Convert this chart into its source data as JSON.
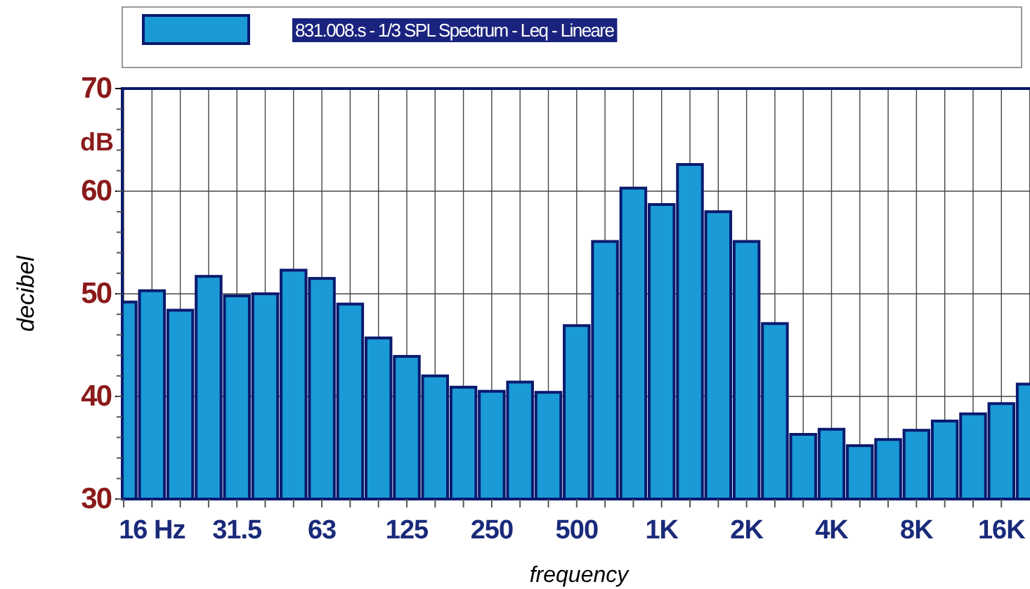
{
  "chart_data": {
    "type": "bar",
    "xlabel": "frequency",
    "ylabel": "decibel",
    "annotations": [
      "dB"
    ],
    "categories": [
      null,
      "16 Hz",
      null,
      null,
      "31.5",
      null,
      null,
      "63",
      null,
      null,
      "125",
      null,
      null,
      "250",
      null,
      null,
      "500",
      null,
      null,
      "1K",
      null,
      null,
      "2K",
      null,
      null,
      "4K",
      null,
      null,
      "8K",
      null,
      null,
      "16K",
      null
    ],
    "series": [
      {
        "name": "831.008.s - 1/3 SPL Spectrum - Leq - Lineare",
        "color": "#1a9ad6",
        "values": [
          49.2,
          50.3,
          48.4,
          51.7,
          49.8,
          50.0,
          52.3,
          51.5,
          49.0,
          45.7,
          43.9,
          42.0,
          40.9,
          40.5,
          41.4,
          40.4,
          46.9,
          55.1,
          60.3,
          58.7,
          62.6,
          58.0,
          55.1,
          47.1,
          36.3,
          36.8,
          35.2,
          35.8,
          36.7,
          37.6,
          38.3,
          39.3,
          41.2
        ]
      }
    ],
    "ylim": [
      30,
      70
    ],
    "yticks": [
      30,
      40,
      50,
      60,
      70
    ],
    "grid": true,
    "legend": "top"
  }
}
